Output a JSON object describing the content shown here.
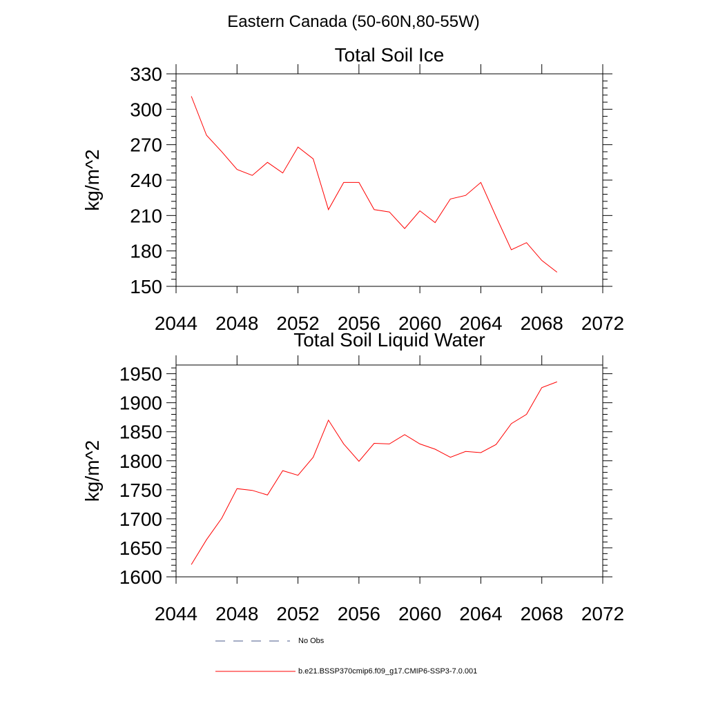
{
  "figure_title": "Eastern Canada (50-60N,80-55W)",
  "colors": {
    "model": "#ff0000",
    "obs": "#4a5a8a",
    "axis": "#000000"
  },
  "legend": [
    {
      "label": "No Obs",
      "style": "dashed"
    },
    {
      "label": "b.e21.BSSP370cmip6.f09_g17.CMIP6-SSP3-7.0.001",
      "style": "solid"
    }
  ],
  "chart_data": [
    {
      "type": "line",
      "title": "Total Soil Ice",
      "xlabel": "",
      "ylabel": "kg/m^2",
      "xlim": [
        2044,
        2072
      ],
      "ylim": [
        150,
        330
      ],
      "xticks": [
        2044,
        2048,
        2052,
        2056,
        2060,
        2064,
        2068,
        2072
      ],
      "yticks": [
        150,
        180,
        210,
        240,
        270,
        300,
        330
      ],
      "grid": false,
      "series": [
        {
          "x": [
            2045,
            2046,
            2047,
            2048,
            2049,
            2050,
            2051,
            2052,
            2053,
            2054,
            2055,
            2056,
            2057,
            2058,
            2059,
            2060,
            2061,
            2062,
            2063,
            2064,
            2065,
            2066,
            2067,
            2068,
            2069
          ],
          "values": [
            311,
            278,
            264,
            249,
            244,
            255,
            246,
            268,
            258,
            215,
            238,
            238,
            215,
            213,
            199,
            214,
            204,
            224,
            227,
            238,
            209,
            181,
            187,
            172,
            162
          ]
        }
      ]
    },
    {
      "type": "line",
      "title": "Total Soil Liquid Water",
      "xlabel": "",
      "ylabel": "kg/m^2",
      "xlim": [
        2044,
        2072
      ],
      "ylim": [
        1600,
        1965
      ],
      "xticks": [
        2044,
        2048,
        2052,
        2056,
        2060,
        2064,
        2068,
        2072
      ],
      "yticks": [
        1600,
        1650,
        1700,
        1750,
        1800,
        1850,
        1900,
        1950
      ],
      "grid": false,
      "series": [
        {
          "x": [
            2045,
            2046,
            2047,
            2048,
            2049,
            2050,
            2051,
            2052,
            2053,
            2054,
            2055,
            2056,
            2057,
            2058,
            2059,
            2060,
            2061,
            2062,
            2063,
            2064,
            2065,
            2066,
            2067,
            2068,
            2069
          ],
          "values": [
            1621,
            1664,
            1701,
            1752,
            1749,
            1741,
            1783,
            1775,
            1806,
            1870,
            1829,
            1799,
            1830,
            1829,
            1845,
            1829,
            1820,
            1806,
            1816,
            1814,
            1828,
            1864,
            1880,
            1926,
            1936
          ]
        }
      ]
    }
  ]
}
